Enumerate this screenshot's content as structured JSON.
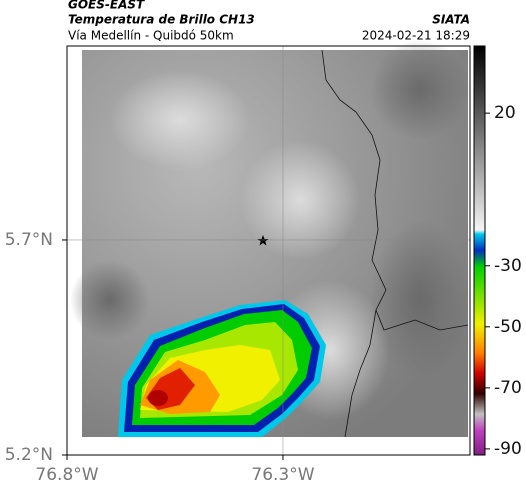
{
  "header": {
    "source": "GOES-EAST",
    "product": "Temperatura de Brillo CH13",
    "org": "SIATA",
    "route": "Vía Medellín - Quibdó 50km",
    "datetime": "2024-02-21 18:29"
  },
  "map": {
    "xlim": [
      -76.8,
      -75.867
    ],
    "ylim": [
      5.2,
      6.151
    ],
    "xticks": [
      {
        "value": -76.8,
        "label": "76.8°W"
      },
      {
        "value": -76.3,
        "label": "76.3°W"
      }
    ],
    "yticks": [
      {
        "value": 5.7,
        "label": "5.7°N"
      },
      {
        "value": 5.2,
        "label": "5.2°N"
      }
    ],
    "grid": true
  },
  "colorbar": {
    "lim": [
      -92,
      42
    ],
    "ticks": [
      20,
      -30,
      -50,
      -70,
      -90
    ]
  }
}
